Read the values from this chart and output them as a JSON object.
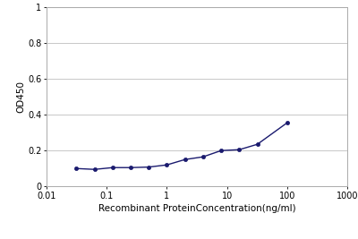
{
  "x_values": [
    0.031,
    0.063,
    0.125,
    0.25,
    0.5,
    1.0,
    2.0,
    4.0,
    8.0,
    16.0,
    32.0,
    100.0
  ],
  "y_values": [
    0.1,
    0.095,
    0.105,
    0.105,
    0.108,
    0.12,
    0.15,
    0.165,
    0.2,
    0.205,
    0.235,
    0.355
  ],
  "line_color": "#1a1a6e",
  "marker_color": "#1a1a6e",
  "marker_style": "o",
  "marker_size": 3,
  "line_width": 1.0,
  "xlabel": "Recombinant ProteinConcentration(ng/ml)",
  "ylabel": "OD450",
  "xlim": [
    0.01,
    1000
  ],
  "ylim": [
    0,
    1.0
  ],
  "yticks": [
    0,
    0.2,
    0.4,
    0.6,
    0.8,
    1
  ],
  "xtick_positions": [
    0.01,
    0.1,
    1,
    10,
    100,
    1000
  ],
  "xtick_labels": [
    "0.01",
    "0.1",
    "1",
    "10",
    "100",
    "1000"
  ],
  "background_color": "#ffffff",
  "grid_color": "#c8c8c8",
  "axis_fontsize": 7.5,
  "tick_fontsize": 7,
  "ylabel_fontsize": 7.5
}
